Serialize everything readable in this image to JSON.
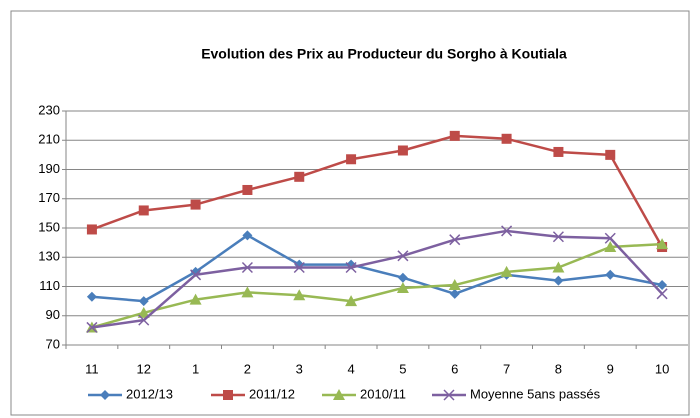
{
  "chart_data": {
    "type": "line",
    "title": "Evolution des Prix au Producteur du Sorgho à Koutiala",
    "categories": [
      "11",
      "12",
      "1",
      "2",
      "3",
      "4",
      "5",
      "6",
      "7",
      "8",
      "9",
      "10"
    ],
    "series": [
      {
        "name": "2012/13",
        "color": "#4a7ebb",
        "marker": "diamond",
        "values": [
          103,
          100,
          120,
          145,
          125,
          125,
          116,
          105,
          118,
          114,
          118,
          111
        ]
      },
      {
        "name": "2011/12",
        "color": "#be4b48",
        "marker": "square",
        "values": [
          149,
          162,
          166,
          176,
          185,
          197,
          203,
          213,
          211,
          202,
          200,
          137
        ]
      },
      {
        "name": "2010/11",
        "color": "#98b954",
        "marker": "triangle",
        "values": [
          82,
          92,
          101,
          106,
          104,
          100,
          109,
          111,
          120,
          123,
          137,
          139
        ]
      },
      {
        "name": "Moyenne 5ans passés",
        "color": "#7d60a0",
        "marker": "x",
        "values": [
          82,
          87,
          118,
          123,
          123,
          123,
          131,
          142,
          148,
          144,
          143,
          105
        ]
      }
    ],
    "ylim": [
      70,
      230
    ],
    "yticks": [
      70,
      90,
      110,
      130,
      150,
      170,
      190,
      210,
      230
    ],
    "grid": true,
    "legend": "bottom"
  }
}
